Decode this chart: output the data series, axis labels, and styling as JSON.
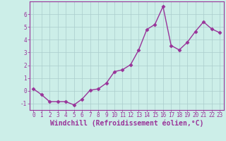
{
  "x": [
    0,
    1,
    2,
    3,
    4,
    5,
    6,
    7,
    8,
    9,
    10,
    11,
    12,
    13,
    14,
    15,
    16,
    17,
    18,
    19,
    20,
    21,
    22,
    23
  ],
  "y": [
    0.15,
    -0.3,
    -0.85,
    -0.85,
    -0.85,
    -1.1,
    -0.65,
    0.05,
    0.15,
    0.6,
    1.5,
    1.65,
    2.05,
    3.2,
    4.8,
    5.2,
    6.6,
    3.55,
    3.2,
    3.8,
    4.65,
    5.4,
    4.85,
    4.55
  ],
  "line_color": "#993399",
  "marker": "D",
  "markersize": 2.5,
  "linewidth": 1.0,
  "bg_color": "#cceee8",
  "grid_color": "#aacccc",
  "xlabel": "Windchill (Refroidissement éolien,°C)",
  "xlabel_fontsize": 7,
  "xlim": [
    -0.5,
    23.5
  ],
  "ylim": [
    -1.5,
    7.0
  ],
  "yticks": [
    -1,
    0,
    1,
    2,
    3,
    4,
    5,
    6
  ],
  "xtick_labels": [
    "0",
    "1",
    "2",
    "3",
    "4",
    "5",
    "6",
    "7",
    "8",
    "9",
    "10",
    "11",
    "12",
    "13",
    "14",
    "15",
    "16",
    "17",
    "18",
    "19",
    "20",
    "21",
    "22",
    "23"
  ],
  "tick_fontsize": 5.5,
  "spine_color": "#993399",
  "label_color": "#993399"
}
